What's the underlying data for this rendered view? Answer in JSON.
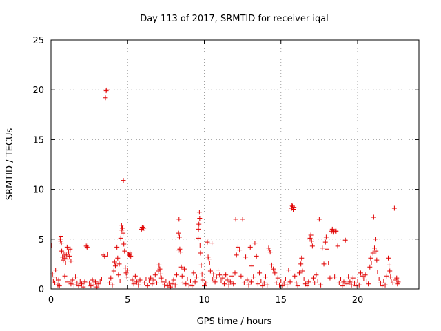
{
  "chart_data": {
    "type": "scatter",
    "title": "Day 113 of 2017, SRMTID for receiver iqal",
    "xlabel": "GPS time / hours",
    "ylabel": "SRMTID / TECUs",
    "xlim": [
      0,
      24
    ],
    "ylim": [
      0,
      25
    ],
    "xticks": [
      0,
      5,
      10,
      15,
      20
    ],
    "yticks": [
      0,
      5,
      10,
      15,
      20,
      25
    ],
    "grid": true,
    "marker": "plus",
    "color": "#e00000",
    "series": [
      {
        "name": "SRMTID",
        "points": [
          [
            0.05,
            4.4
          ],
          [
            0.1,
            1.5
          ],
          [
            0.15,
            0.8
          ],
          [
            0.2,
            1.2
          ],
          [
            0.25,
            0.6
          ],
          [
            0.3,
            1.9
          ],
          [
            0.35,
            1.0
          ],
          [
            0.45,
            0.4
          ],
          [
            0.5,
            0.9
          ],
          [
            0.55,
            0.3
          ],
          [
            0.6,
            5.0
          ],
          [
            0.62,
            4.8
          ],
          [
            0.65,
            5.3
          ],
          [
            0.68,
            4.6
          ],
          [
            0.7,
            3.8
          ],
          [
            0.75,
            3.2
          ],
          [
            0.8,
            2.9
          ],
          [
            0.85,
            3.5
          ],
          [
            0.9,
            3.1
          ],
          [
            0.95,
            2.6
          ],
          [
            1.0,
            3.4
          ],
          [
            1.05,
            4.2
          ],
          [
            1.1,
            3.0
          ],
          [
            1.15,
            3.7
          ],
          [
            1.2,
            3.3
          ],
          [
            1.25,
            4.0
          ],
          [
            1.3,
            2.8
          ],
          [
            0.9,
            1.3
          ],
          [
            1.1,
            0.7
          ],
          [
            1.3,
            0.5
          ],
          [
            1.4,
            0.9
          ],
          [
            1.5,
            0.4
          ],
          [
            1.6,
            1.2
          ],
          [
            1.7,
            0.6
          ],
          [
            1.8,
            0.3
          ],
          [
            1.9,
            0.8
          ],
          [
            2.0,
            0.5
          ],
          [
            2.1,
            0.2
          ],
          [
            2.2,
            0.7
          ],
          [
            2.3,
            4.3
          ],
          [
            2.35,
            4.2
          ],
          [
            2.4,
            4.4
          ],
          [
            2.5,
            0.6
          ],
          [
            2.6,
            0.3
          ],
          [
            2.7,
            0.9
          ],
          [
            2.8,
            0.4
          ],
          [
            2.9,
            0.7
          ],
          [
            3.0,
            0.2
          ],
          [
            3.1,
            0.5
          ],
          [
            3.2,
            0.8
          ],
          [
            3.3,
            1.0
          ],
          [
            3.4,
            3.4
          ],
          [
            3.5,
            3.3
          ],
          [
            3.55,
            19.2
          ],
          [
            3.6,
            19.9
          ],
          [
            3.65,
            20.0
          ],
          [
            3.7,
            3.5
          ],
          [
            3.8,
            0.6
          ],
          [
            3.9,
            1.1
          ],
          [
            4.0,
            0.4
          ],
          [
            4.1,
            1.8
          ],
          [
            4.15,
            2.7
          ],
          [
            4.2,
            2.3
          ],
          [
            4.3,
            4.2
          ],
          [
            4.35,
            3.1
          ],
          [
            4.4,
            1.4
          ],
          [
            4.45,
            2.5
          ],
          [
            4.5,
            0.8
          ],
          [
            4.55,
            5.1
          ],
          [
            4.6,
            6.4
          ],
          [
            4.62,
            5.9
          ],
          [
            4.65,
            6.1
          ],
          [
            4.7,
            5.6
          ],
          [
            4.72,
            10.9
          ],
          [
            4.75,
            4.5
          ],
          [
            4.8,
            3.8
          ],
          [
            4.85,
            2.1
          ],
          [
            4.9,
            1.6
          ],
          [
            4.95,
            1.2
          ],
          [
            5.0,
            1.9
          ],
          [
            5.05,
            3.5
          ],
          [
            5.1,
            3.4
          ],
          [
            5.15,
            3.6
          ],
          [
            5.2,
            3.3
          ],
          [
            5.3,
            0.9
          ],
          [
            5.4,
            0.5
          ],
          [
            5.5,
            1.3
          ],
          [
            5.6,
            0.7
          ],
          [
            5.7,
            0.4
          ],
          [
            5.8,
            0.9
          ],
          [
            5.9,
            6.0
          ],
          [
            5.95,
            6.2
          ],
          [
            6.0,
            5.9
          ],
          [
            6.05,
            6.1
          ],
          [
            6.1,
            0.6
          ],
          [
            6.2,
            1.0
          ],
          [
            6.3,
            0.3
          ],
          [
            6.4,
            0.8
          ],
          [
            6.5,
            1.1
          ],
          [
            6.6,
            0.5
          ],
          [
            6.7,
            0.9
          ],
          [
            6.8,
            1.4
          ],
          [
            6.9,
            0.6
          ],
          [
            7.0,
            1.8
          ],
          [
            7.05,
            2.4
          ],
          [
            7.1,
            2.0
          ],
          [
            7.15,
            1.5
          ],
          [
            7.2,
            1.1
          ],
          [
            7.3,
            0.7
          ],
          [
            7.4,
            0.4
          ],
          [
            7.5,
            0.8
          ],
          [
            7.6,
            0.3
          ],
          [
            7.7,
            0.6
          ],
          [
            7.8,
            0.2
          ],
          [
            7.9,
            0.5
          ],
          [
            8.0,
            0.9
          ],
          [
            8.1,
            0.4
          ],
          [
            8.2,
            1.4
          ],
          [
            8.3,
            3.9
          ],
          [
            8.32,
            5.6
          ],
          [
            8.35,
            7.0
          ],
          [
            8.38,
            5.2
          ],
          [
            8.4,
            4.0
          ],
          [
            8.45,
            3.7
          ],
          [
            8.5,
            2.2
          ],
          [
            8.55,
            1.3
          ],
          [
            8.6,
            0.6
          ],
          [
            8.7,
            2.0
          ],
          [
            8.8,
            0.5
          ],
          [
            8.9,
            1.0
          ],
          [
            9.0,
            0.4
          ],
          [
            9.1,
            0.8
          ],
          [
            9.2,
            0.3
          ],
          [
            9.3,
            1.6
          ],
          [
            9.4,
            0.7
          ],
          [
            9.5,
            1.2
          ],
          [
            9.6,
            5.1
          ],
          [
            9.62,
            6.0
          ],
          [
            9.65,
            6.5
          ],
          [
            9.68,
            7.7
          ],
          [
            9.7,
            7.1
          ],
          [
            9.72,
            4.4
          ],
          [
            9.75,
            3.6
          ],
          [
            9.8,
            2.4
          ],
          [
            9.85,
            1.5
          ],
          [
            9.9,
            0.9
          ],
          [
            10.0,
            0.3
          ],
          [
            10.1,
            0.6
          ],
          [
            10.2,
            4.7
          ],
          [
            10.25,
            3.2
          ],
          [
            10.3,
            3.0
          ],
          [
            10.35,
            2.6
          ],
          [
            10.4,
            1.8
          ],
          [
            10.5,
            4.6
          ],
          [
            10.55,
            1.0
          ],
          [
            10.6,
            1.5
          ],
          [
            10.7,
            0.7
          ],
          [
            10.8,
            1.2
          ],
          [
            10.9,
            1.9
          ],
          [
            11.0,
            1.4
          ],
          [
            11.1,
            0.8
          ],
          [
            11.2,
            1.1
          ],
          [
            11.3,
            0.5
          ],
          [
            11.4,
            1.4
          ],
          [
            11.5,
            0.9
          ],
          [
            11.6,
            0.4
          ],
          [
            11.7,
            0.7
          ],
          [
            11.8,
            1.3
          ],
          [
            11.9,
            0.5
          ],
          [
            12.0,
            1.6
          ],
          [
            12.05,
            7.0
          ],
          [
            12.1,
            3.4
          ],
          [
            12.2,
            4.2
          ],
          [
            12.3,
            3.9
          ],
          [
            12.4,
            1.3
          ],
          [
            12.5,
            7.0
          ],
          [
            12.6,
            0.6
          ],
          [
            12.7,
            3.2
          ],
          [
            12.8,
            0.9
          ],
          [
            12.9,
            0.4
          ],
          [
            13.0,
            4.2
          ],
          [
            13.05,
            0.7
          ],
          [
            13.1,
            2.3
          ],
          [
            13.2,
            1.2
          ],
          [
            13.3,
            4.6
          ],
          [
            13.4,
            3.3
          ],
          [
            13.5,
            0.5
          ],
          [
            13.6,
            1.6
          ],
          [
            13.7,
            0.8
          ],
          [
            13.8,
            0.3
          ],
          [
            13.9,
            0.6
          ],
          [
            14.0,
            1.2
          ],
          [
            14.1,
            0.4
          ],
          [
            14.2,
            4.1
          ],
          [
            14.25,
            3.9
          ],
          [
            14.3,
            3.7
          ],
          [
            14.4,
            2.4
          ],
          [
            14.5,
            2.0
          ],
          [
            14.6,
            1.6
          ],
          [
            14.7,
            0.6
          ],
          [
            14.8,
            1.1
          ],
          [
            14.9,
            0.4
          ],
          [
            15.0,
            0.8
          ],
          [
            15.1,
            0.3
          ],
          [
            15.2,
            0.6
          ],
          [
            15.3,
            1.0
          ],
          [
            15.4,
            0.4
          ],
          [
            15.5,
            1.9
          ],
          [
            15.6,
            0.7
          ],
          [
            15.7,
            8.1
          ],
          [
            15.72,
            8.4
          ],
          [
            15.75,
            8.3
          ],
          [
            15.8,
            8.0
          ],
          [
            15.85,
            8.2
          ],
          [
            15.9,
            1.3
          ],
          [
            16.0,
            0.6
          ],
          [
            16.1,
            0.3
          ],
          [
            16.2,
            1.6
          ],
          [
            16.3,
            2.5
          ],
          [
            16.35,
            3.1
          ],
          [
            16.4,
            1.8
          ],
          [
            16.5,
            1.0
          ],
          [
            16.6,
            0.5
          ],
          [
            16.7,
            0.3
          ],
          [
            16.8,
            0.7
          ],
          [
            16.9,
            5.1
          ],
          [
            16.95,
            5.4
          ],
          [
            17.0,
            4.8
          ],
          [
            17.05,
            4.3
          ],
          [
            17.1,
            1.1
          ],
          [
            17.2,
            0.6
          ],
          [
            17.3,
            1.4
          ],
          [
            17.4,
            0.8
          ],
          [
            17.5,
            7.0
          ],
          [
            17.6,
            0.4
          ],
          [
            17.7,
            4.1
          ],
          [
            17.8,
            2.5
          ],
          [
            17.9,
            4.7
          ],
          [
            17.95,
            5.2
          ],
          [
            18.0,
            4.0
          ],
          [
            18.1,
            2.6
          ],
          [
            18.2,
            1.1
          ],
          [
            18.3,
            5.8
          ],
          [
            18.35,
            6.0
          ],
          [
            18.4,
            5.7
          ],
          [
            18.45,
            5.9
          ],
          [
            18.5,
            1.2
          ],
          [
            18.55,
            5.8
          ],
          [
            18.6,
            5.8
          ],
          [
            18.7,
            4.3
          ],
          [
            18.8,
            0.6
          ],
          [
            18.9,
            1.0
          ],
          [
            19.0,
            0.3
          ],
          [
            19.1,
            0.7
          ],
          [
            19.2,
            4.9
          ],
          [
            19.3,
            0.5
          ],
          [
            19.4,
            1.2
          ],
          [
            19.5,
            0.7
          ],
          [
            19.6,
            0.4
          ],
          [
            19.7,
            1.1
          ],
          [
            19.8,
            0.6
          ],
          [
            19.9,
            0.3
          ],
          [
            20.0,
            0.8
          ],
          [
            20.1,
            0.4
          ],
          [
            20.2,
            1.6
          ],
          [
            20.3,
            1.3
          ],
          [
            20.4,
            1.0
          ],
          [
            20.5,
            1.4
          ],
          [
            20.6,
            0.8
          ],
          [
            20.7,
            0.5
          ],
          [
            20.8,
            2.2
          ],
          [
            20.85,
            3.1
          ],
          [
            20.9,
            2.6
          ],
          [
            21.0,
            3.6
          ],
          [
            21.05,
            7.2
          ],
          [
            21.1,
            4.1
          ],
          [
            21.15,
            5.0
          ],
          [
            21.2,
            3.8
          ],
          [
            21.25,
            2.9
          ],
          [
            21.3,
            1.7
          ],
          [
            21.4,
            1.0
          ],
          [
            21.5,
            0.6
          ],
          [
            21.6,
            0.3
          ],
          [
            21.7,
            0.8
          ],
          [
            21.8,
            0.4
          ],
          [
            21.9,
            1.3
          ],
          [
            22.0,
            3.1
          ],
          [
            22.05,
            2.4
          ],
          [
            22.1,
            1.8
          ],
          [
            22.15,
            1.2
          ],
          [
            22.2,
            0.8
          ],
          [
            22.3,
            0.6
          ],
          [
            22.4,
            8.1
          ],
          [
            22.5,
            0.9
          ],
          [
            22.55,
            1.1
          ],
          [
            22.6,
            0.5
          ],
          [
            22.65,
            0.7
          ]
        ]
      }
    ]
  }
}
